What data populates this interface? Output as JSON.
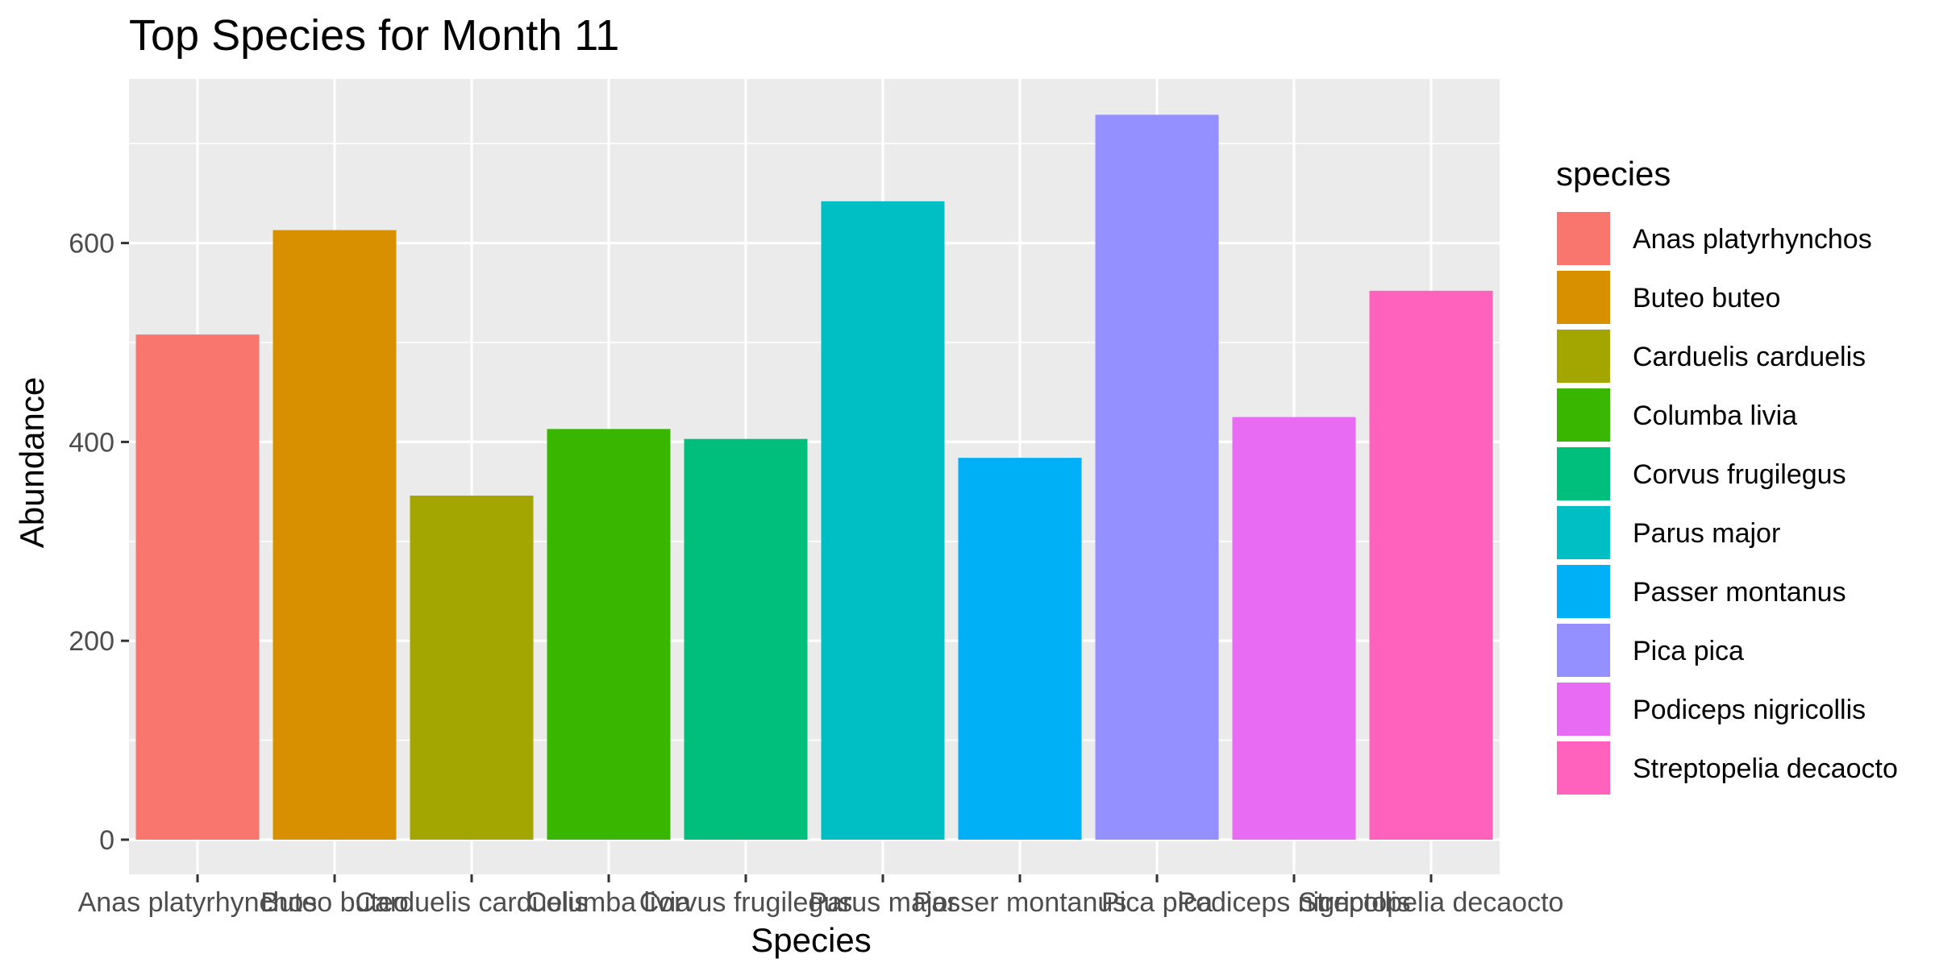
{
  "chart_data": {
    "type": "bar",
    "title": "Top Species for Month 11",
    "xlabel": "Species",
    "ylabel": "Abundance",
    "categories": [
      "Anas platyrhynchos",
      "Buteo buteo",
      "Carduelis carduelis",
      "Columba livia",
      "Corvus frugilegus",
      "Parus major",
      "Passer montanus",
      "Pica pica",
      "Podiceps nigricollis",
      "Streptopelia decaocto"
    ],
    "values": [
      508,
      613,
      346,
      413,
      403,
      642,
      384,
      729,
      425,
      552
    ],
    "colors": [
      "#F8766D",
      "#D89000",
      "#A3A500",
      "#39B600",
      "#00BF7D",
      "#00BFC4",
      "#00B0F6",
      "#9590FF",
      "#E76BF3",
      "#FF62BC"
    ],
    "ylim": [
      0,
      765
    ],
    "yticks": [
      0,
      200,
      400,
      600
    ],
    "ytick_labels": [
      "0",
      "200",
      "400",
      "600"
    ],
    "grid": true,
    "panel_background": "#EBEBEB",
    "grid_color": "#FFFFFF",
    "legend": {
      "title": "species",
      "position": "right",
      "entries": [
        "Anas platyrhynchos",
        "Buteo buteo",
        "Carduelis carduelis",
        "Columba livia",
        "Corvus frugilegus",
        "Parus major",
        "Passer montanus",
        "Pica pica",
        "Podiceps nigricollis",
        "Streptopelia decaocto"
      ]
    }
  }
}
